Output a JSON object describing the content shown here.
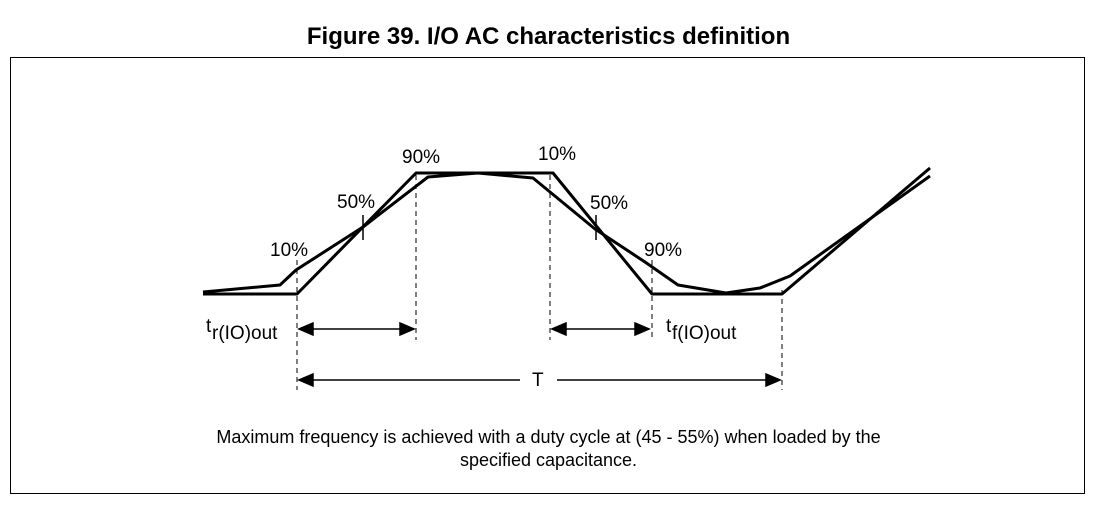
{
  "figure": {
    "title": "Figure 39. I/O AC characteristics definition",
    "labels": {
      "pct_10_rise": "10%",
      "pct_50_rise": "50%",
      "pct_90_rise": "90%",
      "pct_10_fall": "10%",
      "pct_50_fall": "50%",
      "pct_90_fall": "90%",
      "tr_main": "t",
      "tr_sub": "r(IO)out",
      "tf_main": "t",
      "tf_sub": "f(IO)out",
      "period": "T"
    },
    "caption_line1": "Maximum frequency is achieved with a duty cycle at (45 - 55%) when loaded by the",
    "caption_line2": "specified capacitance."
  }
}
